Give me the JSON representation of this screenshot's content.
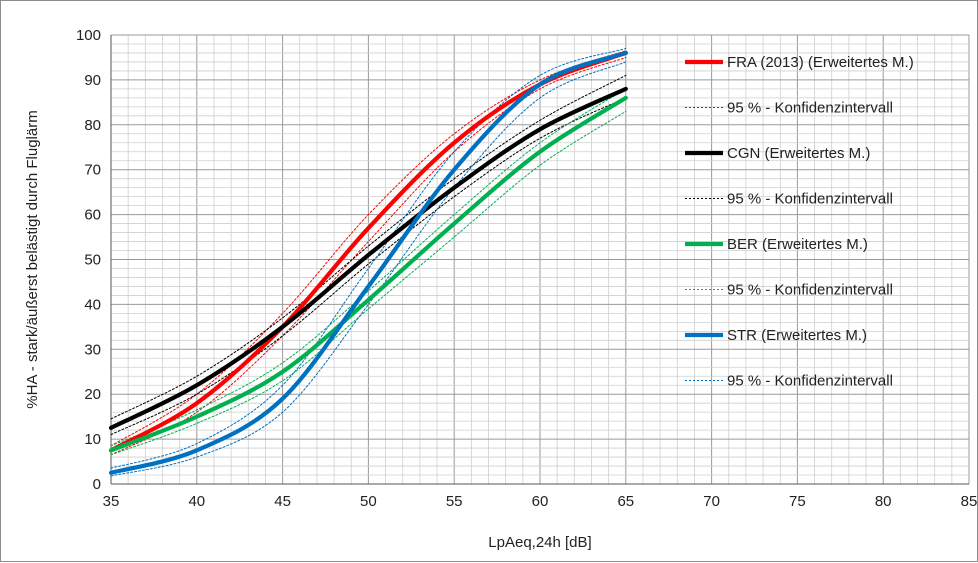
{
  "chart_data": {
    "type": "line",
    "xlabel": "LpAeq,24h [dB]",
    "ylabel": "%HA - stark/äußerst belästigt durch Fluglärm",
    "xlim": [
      35,
      85
    ],
    "ylim": [
      0,
      100
    ],
    "x_ticks": [
      "35",
      "40",
      "45",
      "50",
      "55",
      "60",
      "65",
      "70",
      "75",
      "80",
      "85"
    ],
    "y_ticks": [
      "0",
      "10",
      "20",
      "30",
      "40",
      "50",
      "60",
      "70",
      "80",
      "90",
      "100"
    ],
    "grid": "major and minor",
    "legend_position": "right",
    "x": [
      35,
      40,
      45,
      50,
      55,
      60,
      65
    ],
    "series": [
      {
        "name": "FRA (2013)  (Erweitertes M.)",
        "color": "#ff0000",
        "style": "solid-thick",
        "values": [
          7.5,
          18,
          35,
          57,
          76,
          89,
          96
        ]
      },
      {
        "name": "95 % - Konfidenzintervall",
        "color": "#ff0000",
        "style": "dotted",
        "values": [
          8.5,
          20,
          38,
          60,
          78,
          90,
          96.5
        ]
      },
      {
        "name": "",
        "color": "#ff0000",
        "style": "dotted",
        "values": [
          6.5,
          16,
          33,
          54,
          74,
          88,
          95
        ]
      },
      {
        "name": "CGN (Erweitertes M.)",
        "color": "#000000",
        "style": "solid-thick",
        "values": [
          12.5,
          22,
          35,
          51,
          66,
          79,
          88
        ]
      },
      {
        "name": "95 % - Konfidenzintervall",
        "color": "#000000",
        "style": "dotted",
        "values": [
          14.5,
          24,
          37,
          53,
          68,
          81,
          91
        ]
      },
      {
        "name": "",
        "color": "#000000",
        "style": "dotted",
        "values": [
          11,
          20,
          33,
          49,
          64,
          77,
          86
        ]
      },
      {
        "name": "BER (Erweitertes M.)",
        "color": "#00b050",
        "style": "solid-thick",
        "values": [
          7.5,
          15,
          25,
          41,
          58,
          74,
          86
        ]
      },
      {
        "name": "95 % - Konfidenzintervall",
        "color": "#00b050",
        "style": "dotted",
        "values": [
          8.5,
          16.5,
          27,
          43,
          60,
          76,
          88
        ]
      },
      {
        "name": "",
        "color": "#00b050",
        "style": "dotted",
        "values": [
          6.5,
          13.5,
          23,
          39,
          55,
          71,
          83
        ]
      },
      {
        "name": "STR (Erweitertes M.)",
        "color": "#0070c0",
        "style": "solid-thick",
        "values": [
          2.5,
          7.5,
          19,
          44,
          70,
          89,
          96
        ]
      },
      {
        "name": "95 % - Konfidenzintervall",
        "color": "#0070c0",
        "style": "dotted",
        "values": [
          3.5,
          9,
          22,
          48,
          74,
          91,
          97
        ]
      },
      {
        "name": "",
        "color": "#0070c0",
        "style": "dotted",
        "values": [
          1.8,
          6,
          16,
          40,
          66,
          86,
          94
        ]
      }
    ]
  },
  "legend": [
    {
      "label": "FRA (2013)  (Erweitertes M.)",
      "color": "#ff0000",
      "style": "solid"
    },
    {
      "label": "95 % - Konfidenzintervall",
      "color": "#ff0000",
      "style": "dotted"
    },
    {
      "label": "CGN (Erweitertes M.)",
      "color": "#000000",
      "style": "solid"
    },
    {
      "label": "95 % - Konfidenzintervall",
      "color": "#000000",
      "style": "dotted"
    },
    {
      "label": "BER (Erweitertes M.)",
      "color": "#00b050",
      "style": "solid"
    },
    {
      "label": "95 % - Konfidenzintervall",
      "color": "#00b050",
      "style": "dotted"
    },
    {
      "label": "STR (Erweitertes M.)",
      "color": "#0070c0",
      "style": "solid"
    },
    {
      "label": "95 % - Konfidenzintervall",
      "color": "#0070c0",
      "style": "dotted"
    }
  ]
}
